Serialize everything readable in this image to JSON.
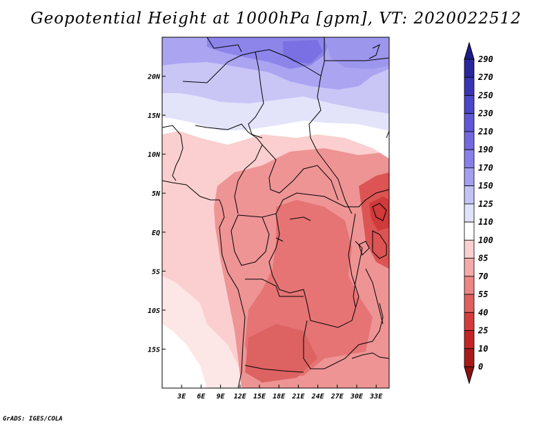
{
  "title": "Geopotential Height at 1000hPa [gpm], VT: 2020022512",
  "footer": "GrADS: IGES/COLA",
  "map": {
    "lon_range": [
      0,
      35
    ],
    "lat_range": [
      -20,
      25
    ],
    "x_ticks": [
      "3E",
      "6E",
      "9E",
      "12E",
      "15E",
      "18E",
      "21E",
      "24E",
      "27E",
      "30E",
      "33E"
    ],
    "y_ticks": [
      "20N",
      "15N",
      "10N",
      "5N",
      "EQ",
      "5S",
      "10S",
      "15S"
    ]
  },
  "colorbar": {
    "labels": [
      "290",
      "270",
      "250",
      "230",
      "210",
      "190",
      "170",
      "150",
      "125",
      "110",
      "100",
      "85",
      "70",
      "55",
      "40",
      "25",
      "10",
      "0"
    ],
    "colors": [
      "#1e1a8c",
      "#2a249e",
      "#3b33b5",
      "#4c45c8",
      "#6057d6",
      "#7468e0",
      "#8a7fe8",
      "#a69ff0",
      "#c5c2f5",
      "#e2e2fa",
      "#ffffff",
      "#fbd0d0",
      "#f5aaaa",
      "#ec8686",
      "#e06060",
      "#d43c3c",
      "#c32626",
      "#a81a1a",
      "#8c1212"
    ]
  },
  "fields": {
    "sahara_level": "190",
    "sahel_level": "125",
    "ocean_level": "100",
    "congo_basin_level": "70",
    "angola_level": "55",
    "great_lakes_level": "40"
  }
}
